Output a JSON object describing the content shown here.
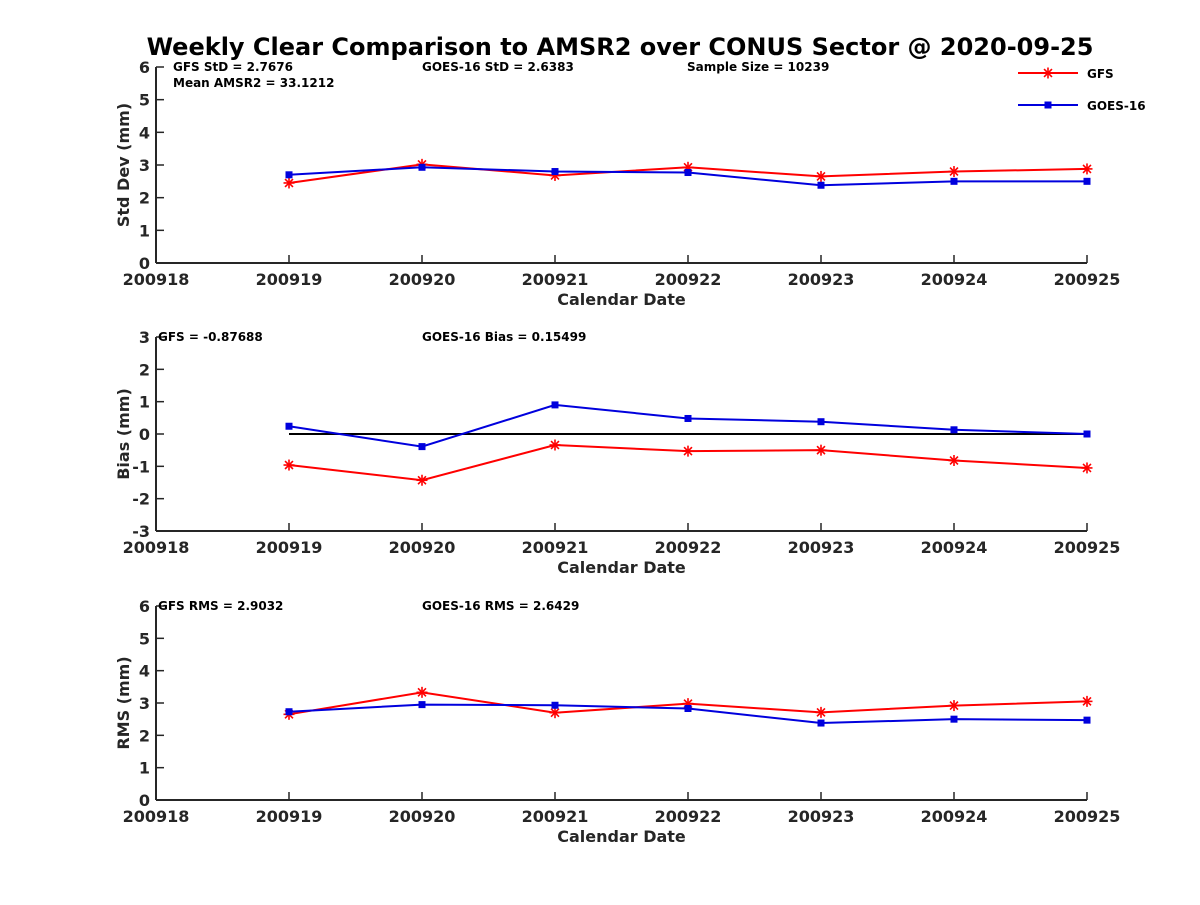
{
  "chart_data": {
    "type": "line",
    "title": "Weekly Clear Comparison to AMSR2 over CONUS Sector @ 2020-09-25",
    "categories": [
      "200918",
      "200919",
      "200920",
      "200921",
      "200922",
      "200923",
      "200924",
      "200925"
    ],
    "legend": {
      "placement": "top-right",
      "entries": [
        {
          "name": "GFS",
          "color": "#ff0000",
          "marker": "asterisk"
        },
        {
          "name": "GOES-16",
          "color": "#0000dd",
          "marker": "square"
        }
      ]
    },
    "panels": [
      {
        "id": "std",
        "xlabel": "Calendar Date",
        "ylabel": "Std Dev (mm)",
        "ylim": [
          0,
          6
        ],
        "yticks": [
          "0",
          "1",
          "2",
          "3",
          "4",
          "5",
          "6"
        ],
        "zero_line": false,
        "annotations": [
          {
            "text": "GFS StD = 2.7676",
            "anchor": "left"
          },
          {
            "text": "GOES-16 StD = 2.6383",
            "anchor": "mid"
          },
          {
            "text": "Sample Size = 10239",
            "anchor": "right"
          },
          {
            "text": "Mean AMSR2 = 33.1212",
            "anchor": "left-line2"
          }
        ],
        "series": [
          {
            "name": "GFS",
            "values": [
              null,
              2.45,
              3.02,
              2.68,
              2.93,
              2.65,
              2.8,
              2.88
            ]
          },
          {
            "name": "GOES-16",
            "values": [
              null,
              2.7,
              2.93,
              2.8,
              2.77,
              2.38,
              2.5,
              2.5
            ]
          }
        ]
      },
      {
        "id": "bias",
        "xlabel": "Calendar Date",
        "ylabel": "Bias (mm)",
        "ylim": [
          -3,
          3
        ],
        "yticks": [
          "-3",
          "-2",
          "-1",
          "0",
          "1",
          "2",
          "3"
        ],
        "zero_line": true,
        "annotations": [
          {
            "text": "GFS = -0.87688",
            "anchor": "left"
          },
          {
            "text": "GOES-16 Bias  = 0.15499",
            "anchor": "mid"
          }
        ],
        "series": [
          {
            "name": "GFS",
            "values": [
              null,
              -0.96,
              -1.43,
              -0.34,
              -0.53,
              -0.5,
              -0.82,
              -1.05
            ]
          },
          {
            "name": "GOES-16",
            "values": [
              null,
              0.24,
              -0.39,
              0.9,
              0.48,
              0.38,
              0.13,
              0.0
            ]
          }
        ]
      },
      {
        "id": "rms",
        "xlabel": "Calendar Date",
        "ylabel": "RMS (mm)",
        "ylim": [
          0,
          6
        ],
        "yticks": [
          "0",
          "1",
          "2",
          "3",
          "4",
          "5",
          "6"
        ],
        "zero_line": false,
        "annotations": [
          {
            "text": "GFS RMS = 2.9032",
            "anchor": "left"
          },
          {
            "text": "GOES-16 RMS = 2.6429",
            "anchor": "mid"
          }
        ],
        "series": [
          {
            "name": "GFS",
            "values": [
              null,
              2.65,
              3.33,
              2.7,
              2.98,
              2.71,
              2.92,
              3.05
            ]
          },
          {
            "name": "GOES-16",
            "values": [
              null,
              2.73,
              2.95,
              2.93,
              2.83,
              2.38,
              2.5,
              2.47
            ]
          }
        ]
      }
    ]
  }
}
